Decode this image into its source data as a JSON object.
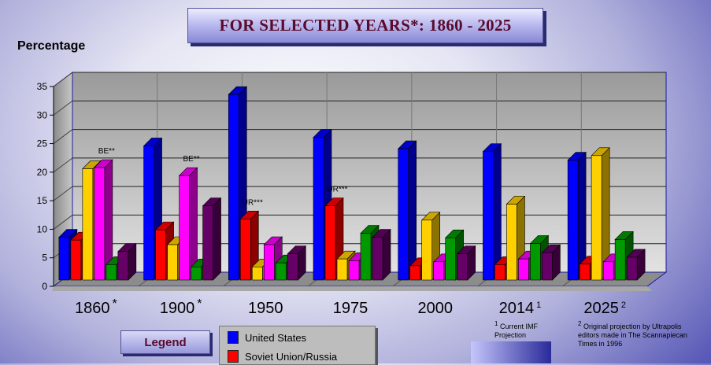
{
  "title": "FOR SELECTED YEARS*: 1860 - 2025",
  "legend_button": "Legend",
  "legend": [
    {
      "name": "United States",
      "color": "#0000ff"
    },
    {
      "name": "Soviet Union/Russia",
      "color": "#ff0000"
    }
  ],
  "notes": [
    {
      "num": "1",
      "text": "Current IMF Projection"
    },
    {
      "num": "2",
      "text": "Original projection by Ultrapolis editors made in The Scannapiecan Times in 1996"
    }
  ],
  "chart_data": {
    "type": "bar",
    "title": "FOR SELECTED YEARS*: 1860 - 2025",
    "ylabel": "Percentage",
    "xlabel": "",
    "ylim": [
      0,
      35
    ],
    "yticks": [
      0,
      5,
      10,
      15,
      20,
      25,
      30,
      35
    ],
    "grid": true,
    "categories": [
      {
        "label": "1860",
        "sup": "*"
      },
      {
        "label": "1900",
        "sup": "*"
      },
      {
        "label": "1950",
        "sup": ""
      },
      {
        "label": "1975",
        "sup": ""
      },
      {
        "label": "2000",
        "sup": ""
      },
      {
        "label": "2014",
        "sup": "1"
      },
      {
        "label": "2025",
        "sup": "2"
      }
    ],
    "series_colors": [
      "#0000ff",
      "#ff0000",
      "#ffd000",
      "#ff00ff",
      "#009900",
      "#660066"
    ],
    "series": [
      {
        "name": "United States",
        "values": [
          7.5,
          23.5,
          32.5,
          25.0,
          23.0,
          22.5,
          21.0
        ]
      },
      {
        "name": "Soviet Union/Russia",
        "values": [
          7.0,
          8.8,
          10.7,
          13.0,
          2.5,
          2.7,
          2.8
        ]
      },
      {
        "values": [
          19.5,
          6.2,
          2.3,
          3.7,
          10.5,
          13.3,
          21.8
        ]
      },
      {
        "values": [
          19.7,
          18.3,
          6.2,
          3.4,
          3.2,
          3.7,
          3.2
        ]
      },
      {
        "values": [
          2.7,
          2.3,
          3.0,
          8.2,
          7.4,
          6.4,
          7.1
        ]
      },
      {
        "values": [
          5.0,
          13.0,
          4.6,
          7.5,
          4.6,
          4.8,
          4.0
        ]
      }
    ],
    "annotations": [
      {
        "category": 0,
        "series": 3,
        "text": "BE**"
      },
      {
        "category": 1,
        "series": 3,
        "text": "BE**"
      },
      {
        "category": 2,
        "series": 1,
        "text": "UR***"
      },
      {
        "category": 3,
        "series": 1,
        "text": "UR***"
      }
    ]
  }
}
